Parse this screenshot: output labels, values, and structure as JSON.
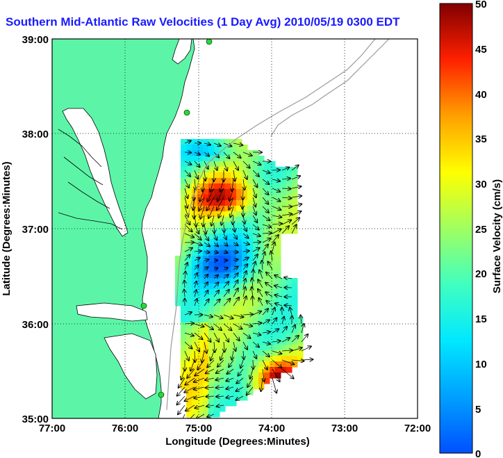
{
  "title": "Southern Mid-Atlantic Raw Velocities (1 Day Avg) 2010/05/19 0300 EDT",
  "xaxis": {
    "label": "Longitude (Degrees:Minutes)",
    "ticks": [
      "77:00",
      "76:00",
      "75:00",
      "74:00",
      "73:00",
      "72:00"
    ]
  },
  "yaxis": {
    "label": "Latitude (Degrees:Minutes)",
    "ticks": [
      "39:00",
      "38:00",
      "37:00",
      "36:00",
      "35:00"
    ]
  },
  "colorbar": {
    "label": "Surface Velocity (cm/s)",
    "ticks": [
      "50",
      "45",
      "40",
      "35",
      "30",
      "25",
      "20",
      "15",
      "10",
      "5",
      "0"
    ],
    "range": [
      0,
      50
    ],
    "colormap": "jet"
  },
  "map": {
    "lon_range": [
      -77,
      -72
    ],
    "lat_range": [
      35,
      39
    ],
    "land_color": "#5cf5a8",
    "grid": "dotted",
    "colors": {
      "coast": "#000000",
      "bathymetry": "#9a9a9a",
      "station": "#22dd33"
    }
  }
}
